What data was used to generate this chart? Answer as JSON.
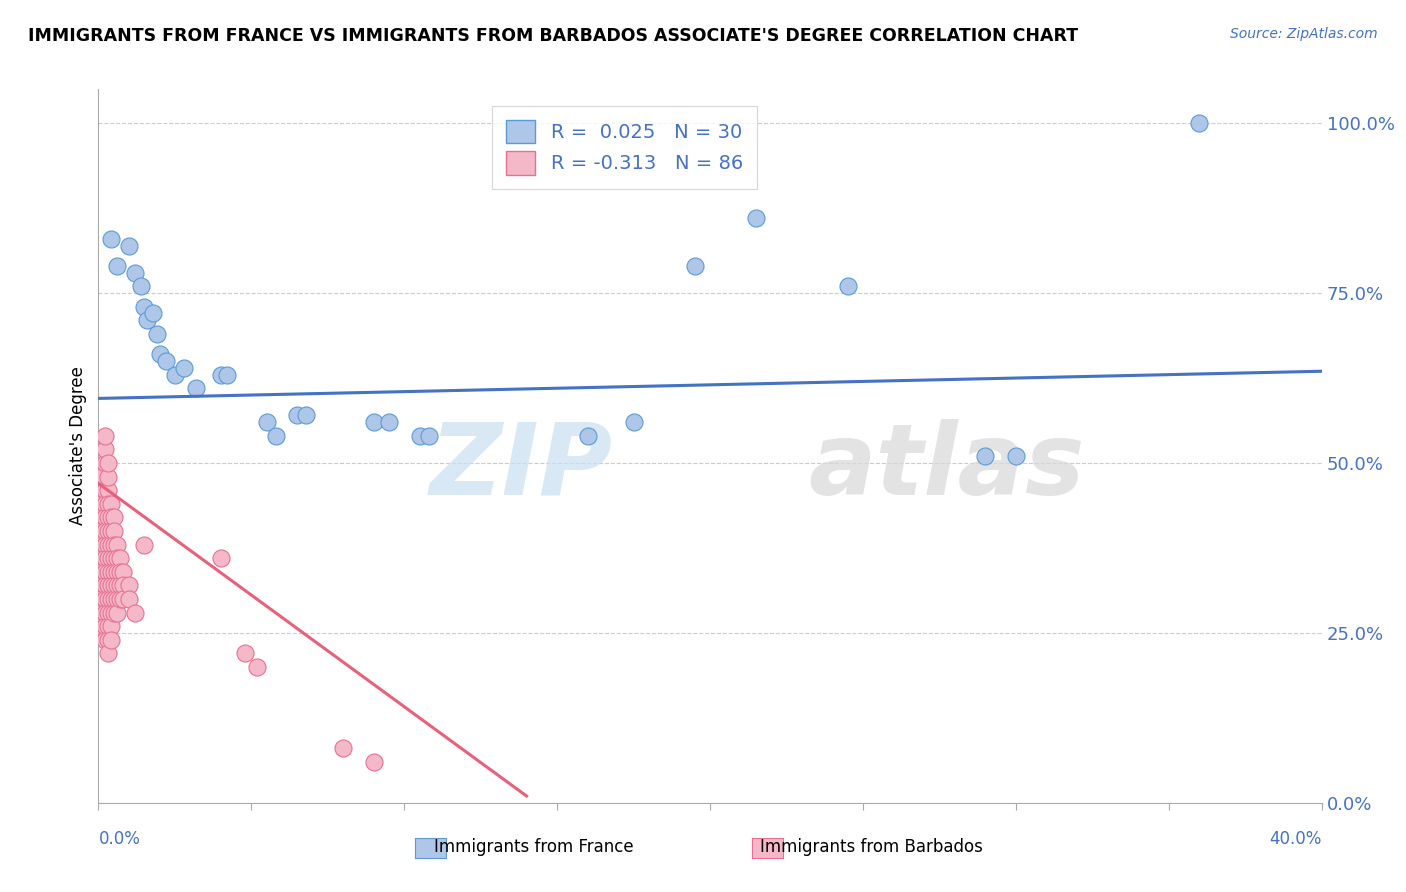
{
  "title": "IMMIGRANTS FROM FRANCE VS IMMIGRANTS FROM BARBADOS ASSOCIATE'S DEGREE CORRELATION CHART",
  "source_text": "Source: ZipAtlas.com",
  "ylabel": "Associate's Degree",
  "x_min": 0.0,
  "x_max": 0.4,
  "y_min": 0.0,
  "y_max": 1.05,
  "ytick_labels": [
    "0.0%",
    "25.0%",
    "50.0%",
    "75.0%",
    "100.0%"
  ],
  "ytick_values": [
    0.0,
    0.25,
    0.5,
    0.75,
    1.0
  ],
  "france_color": "#aec6e8",
  "france_edge": "#5b9bd5",
  "barbados_color": "#f4b8c8",
  "barbados_edge": "#e87090",
  "trendline_france_color": "#4472c4",
  "trendline_barbados_color": "#e8607a",
  "france_scatter": [
    [
      0.004,
      0.83
    ],
    [
      0.006,
      0.79
    ],
    [
      0.01,
      0.82
    ],
    [
      0.012,
      0.78
    ],
    [
      0.014,
      0.76
    ],
    [
      0.015,
      0.73
    ],
    [
      0.016,
      0.71
    ],
    [
      0.018,
      0.72
    ],
    [
      0.019,
      0.69
    ],
    [
      0.02,
      0.66
    ],
    [
      0.022,
      0.65
    ],
    [
      0.025,
      0.63
    ],
    [
      0.028,
      0.64
    ],
    [
      0.032,
      0.61
    ],
    [
      0.04,
      0.63
    ],
    [
      0.042,
      0.63
    ],
    [
      0.055,
      0.56
    ],
    [
      0.058,
      0.54
    ],
    [
      0.065,
      0.57
    ],
    [
      0.068,
      0.57
    ],
    [
      0.09,
      0.56
    ],
    [
      0.095,
      0.56
    ],
    [
      0.105,
      0.54
    ],
    [
      0.108,
      0.54
    ],
    [
      0.16,
      0.54
    ],
    [
      0.175,
      0.56
    ],
    [
      0.195,
      0.79
    ],
    [
      0.215,
      0.86
    ],
    [
      0.245,
      0.76
    ],
    [
      0.29,
      0.51
    ],
    [
      0.3,
      0.51
    ],
    [
      0.36,
      1.0
    ]
  ],
  "barbados_scatter": [
    [
      0.001,
      0.49
    ],
    [
      0.001,
      0.46
    ],
    [
      0.001,
      0.44
    ],
    [
      0.001,
      0.42
    ],
    [
      0.001,
      0.4
    ],
    [
      0.001,
      0.38
    ],
    [
      0.001,
      0.36
    ],
    [
      0.001,
      0.34
    ],
    [
      0.001,
      0.32
    ],
    [
      0.001,
      0.3
    ],
    [
      0.001,
      0.28
    ],
    [
      0.001,
      0.26
    ],
    [
      0.001,
      0.48
    ],
    [
      0.002,
      0.46
    ],
    [
      0.002,
      0.44
    ],
    [
      0.002,
      0.42
    ],
    [
      0.002,
      0.4
    ],
    [
      0.002,
      0.38
    ],
    [
      0.002,
      0.36
    ],
    [
      0.002,
      0.34
    ],
    [
      0.002,
      0.32
    ],
    [
      0.002,
      0.3
    ],
    [
      0.002,
      0.28
    ],
    [
      0.002,
      0.26
    ],
    [
      0.002,
      0.24
    ],
    [
      0.002,
      0.5
    ],
    [
      0.002,
      0.52
    ],
    [
      0.002,
      0.54
    ],
    [
      0.003,
      0.46
    ],
    [
      0.003,
      0.44
    ],
    [
      0.003,
      0.42
    ],
    [
      0.003,
      0.4
    ],
    [
      0.003,
      0.38
    ],
    [
      0.003,
      0.36
    ],
    [
      0.003,
      0.34
    ],
    [
      0.003,
      0.32
    ],
    [
      0.003,
      0.3
    ],
    [
      0.003,
      0.28
    ],
    [
      0.003,
      0.26
    ],
    [
      0.003,
      0.24
    ],
    [
      0.003,
      0.22
    ],
    [
      0.003,
      0.48
    ],
    [
      0.003,
      0.5
    ],
    [
      0.004,
      0.44
    ],
    [
      0.004,
      0.42
    ],
    [
      0.004,
      0.4
    ],
    [
      0.004,
      0.38
    ],
    [
      0.004,
      0.36
    ],
    [
      0.004,
      0.34
    ],
    [
      0.004,
      0.32
    ],
    [
      0.004,
      0.3
    ],
    [
      0.004,
      0.28
    ],
    [
      0.004,
      0.26
    ],
    [
      0.004,
      0.24
    ],
    [
      0.005,
      0.42
    ],
    [
      0.005,
      0.4
    ],
    [
      0.005,
      0.38
    ],
    [
      0.005,
      0.36
    ],
    [
      0.005,
      0.34
    ],
    [
      0.005,
      0.32
    ],
    [
      0.005,
      0.3
    ],
    [
      0.005,
      0.28
    ],
    [
      0.006,
      0.38
    ],
    [
      0.006,
      0.36
    ],
    [
      0.006,
      0.34
    ],
    [
      0.006,
      0.32
    ],
    [
      0.006,
      0.3
    ],
    [
      0.006,
      0.28
    ],
    [
      0.007,
      0.36
    ],
    [
      0.007,
      0.34
    ],
    [
      0.007,
      0.32
    ],
    [
      0.007,
      0.3
    ],
    [
      0.008,
      0.34
    ],
    [
      0.008,
      0.32
    ],
    [
      0.008,
      0.3
    ],
    [
      0.01,
      0.32
    ],
    [
      0.01,
      0.3
    ],
    [
      0.012,
      0.28
    ],
    [
      0.015,
      0.38
    ],
    [
      0.04,
      0.36
    ],
    [
      0.048,
      0.22
    ],
    [
      0.052,
      0.2
    ],
    [
      0.08,
      0.08
    ],
    [
      0.09,
      0.06
    ]
  ],
  "france_trend_x": [
    0.0,
    0.4
  ],
  "france_trend_y": [
    0.595,
    0.635
  ],
  "barbados_trend_x": [
    0.0,
    0.14
  ],
  "barbados_trend_y": [
    0.47,
    0.01
  ]
}
